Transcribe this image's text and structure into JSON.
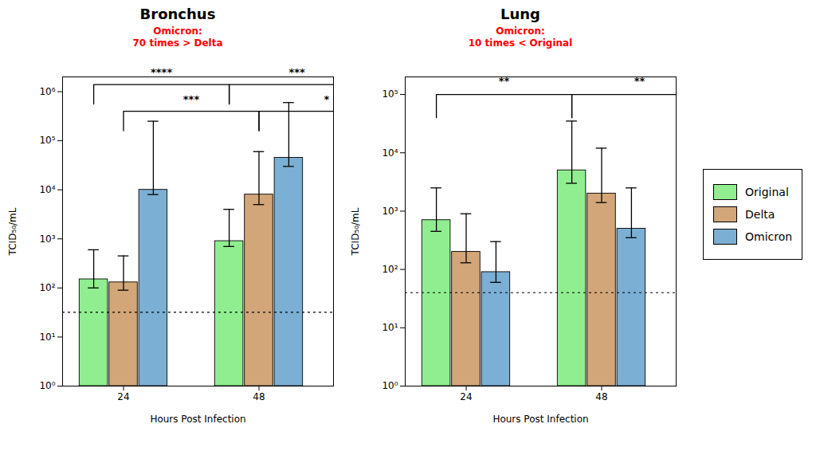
{
  "chart_data": [
    {
      "type": "bar",
      "title": "Bronchus",
      "xlabel": "Hours Post Infection",
      "ylabel": "TCID₅₀/mL",
      "categories": [
        "24",
        "48"
      ],
      "series": [
        {
          "name": "Original",
          "color": "#90EE90",
          "values": [
            150,
            900
          ],
          "error_lower": [
            100,
            700
          ],
          "error_upper": [
            600,
            4000
          ]
        },
        {
          "name": "Delta",
          "color": "#D2A679",
          "values": [
            130,
            8000
          ],
          "error_lower": [
            90,
            5000
          ],
          "error_upper": [
            450,
            60000
          ]
        },
        {
          "name": "Omicron",
          "color": "#7BAFD4",
          "values": [
            10000,
            45000
          ],
          "error_lower": [
            8000,
            30000
          ],
          "error_upper": [
            250000,
            600000
          ]
        }
      ],
      "log": "y",
      "ylim": [
        1.0,
        2000000.0
      ],
      "yticks": [
        {
          "value": 1,
          "label": "10⁰"
        },
        {
          "value": 10,
          "label": "10¹"
        },
        {
          "value": 100,
          "label": "10²"
        },
        {
          "value": 1000,
          "label": "10³"
        },
        {
          "value": 10000,
          "label": "10⁴"
        },
        {
          "value": 100000,
          "label": "10⁵"
        },
        {
          "value": 1000000,
          "label": "10⁶"
        }
      ],
      "dotted_line": 32,
      "brackets": [
        {
          "from": {
            "category": "24",
            "series": "Original"
          },
          "to": {
            "category": "48",
            "series": "Original"
          },
          "y": 1400000,
          "label": "****"
        },
        {
          "from": {
            "category": "24",
            "series": "Delta"
          },
          "to": {
            "category": "48",
            "series": "Delta"
          },
          "y": 400000,
          "label": "***"
        },
        {
          "from": {
            "category": "48",
            "series": "Original"
          },
          "to": null,
          "y": 1400000,
          "label": "***"
        },
        {
          "from": {
            "category": "48",
            "series": "Delta"
          },
          "to": null,
          "y": 400000,
          "label": "*"
        }
      ],
      "annotation": {
        "text": "Omicron:\n70 times > Delta",
        "color": "red"
      }
    },
    {
      "type": "bar",
      "title": "Lung",
      "xlabel": "Hours Post Infection",
      "ylabel": "TCID₅₀/mL",
      "categories": [
        "24",
        "48"
      ],
      "series": [
        {
          "name": "Original",
          "color": "#90EE90",
          "values": [
            700,
            5000
          ],
          "error_lower": [
            450,
            3000
          ],
          "error_upper": [
            2500,
            35000
          ]
        },
        {
          "name": "Delta",
          "color": "#D2A679",
          "values": [
            200,
            2000
          ],
          "error_lower": [
            130,
            1400
          ],
          "error_upper": [
            900,
            12000
          ]
        },
        {
          "name": "Omicron",
          "color": "#7BAFD4",
          "values": [
            90,
            500
          ],
          "error_lower": [
            60,
            350
          ],
          "error_upper": [
            300,
            2500
          ]
        }
      ],
      "log": "y",
      "ylim": [
        1.0,
        200000.0
      ],
      "yticks": [
        {
          "value": 1,
          "label": "10⁰"
        },
        {
          "value": 10,
          "label": "10¹"
        },
        {
          "value": 100,
          "label": "10²"
        },
        {
          "value": 1000,
          "label": "10³"
        },
        {
          "value": 10000,
          "label": "10⁴"
        },
        {
          "value": 100000,
          "label": "10⁵"
        }
      ],
      "dotted_line": 40,
      "brackets": [
        {
          "from": {
            "category": "24",
            "series": "Original"
          },
          "to": {
            "category": "48",
            "series": "Original"
          },
          "y": 100000,
          "label": "**"
        },
        {
          "from": {
            "category": "48",
            "series": "Original"
          },
          "to": null,
          "y": 100000,
          "label": "**"
        }
      ],
      "annotation": {
        "text": "Omicron:\n10 times < Original",
        "color": "red"
      },
      "legend": "right"
    }
  ]
}
